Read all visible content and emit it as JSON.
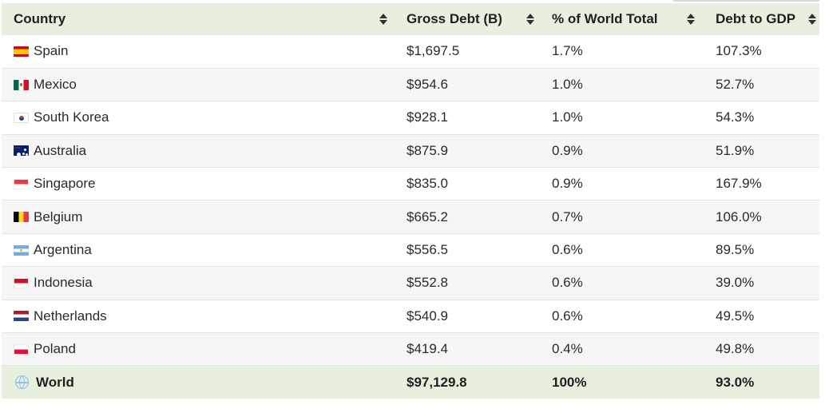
{
  "table": {
    "columns": [
      {
        "label": "Country"
      },
      {
        "label": "Gross Debt (B)"
      },
      {
        "label": "% of World Total"
      },
      {
        "label": "Debt to GDP"
      }
    ],
    "rows": [
      {
        "country": "Spain",
        "flag": "spain-flag-icon",
        "gross_debt": "$1,697.5",
        "pct_world": "1.7%",
        "debt_to_gdp": "107.3%"
      },
      {
        "country": "Mexico",
        "flag": "mexico-flag-icon",
        "gross_debt": "$954.6",
        "pct_world": "1.0%",
        "debt_to_gdp": "52.7%"
      },
      {
        "country": "South Korea",
        "flag": "south-korea-flag-icon",
        "gross_debt": "$928.1",
        "pct_world": "1.0%",
        "debt_to_gdp": "54.3%"
      },
      {
        "country": "Australia",
        "flag": "australia-flag-icon",
        "gross_debt": "$875.9",
        "pct_world": "0.9%",
        "debt_to_gdp": "51.9%"
      },
      {
        "country": "Singapore",
        "flag": "singapore-flag-icon",
        "gross_debt": "$835.0",
        "pct_world": "0.9%",
        "debt_to_gdp": "167.9%"
      },
      {
        "country": "Belgium",
        "flag": "belgium-flag-icon",
        "gross_debt": "$665.2",
        "pct_world": "0.7%",
        "debt_to_gdp": "106.0%"
      },
      {
        "country": "Argentina",
        "flag": "argentina-flag-icon",
        "gross_debt": "$556.5",
        "pct_world": "0.6%",
        "debt_to_gdp": "89.5%"
      },
      {
        "country": "Indonesia",
        "flag": "indonesia-flag-icon",
        "gross_debt": "$552.8",
        "pct_world": "0.6%",
        "debt_to_gdp": "39.0%"
      },
      {
        "country": "Netherlands",
        "flag": "netherlands-flag-icon",
        "gross_debt": "$540.9",
        "pct_world": "0.6%",
        "debt_to_gdp": "49.5%"
      },
      {
        "country": "Poland",
        "flag": "poland-flag-icon",
        "gross_debt": "$419.4",
        "pct_world": "0.4%",
        "debt_to_gdp": "49.8%"
      }
    ],
    "total": {
      "country": "World",
      "icon": "globe-icon",
      "gross_debt": "$97,129.8",
      "pct_world": "100%",
      "debt_to_gdp": "93.0%"
    }
  },
  "colors": {
    "header_bg": "#e7efdf",
    "total_bg": "#e7efdf",
    "stripe_bg": "#f6f6f6"
  }
}
